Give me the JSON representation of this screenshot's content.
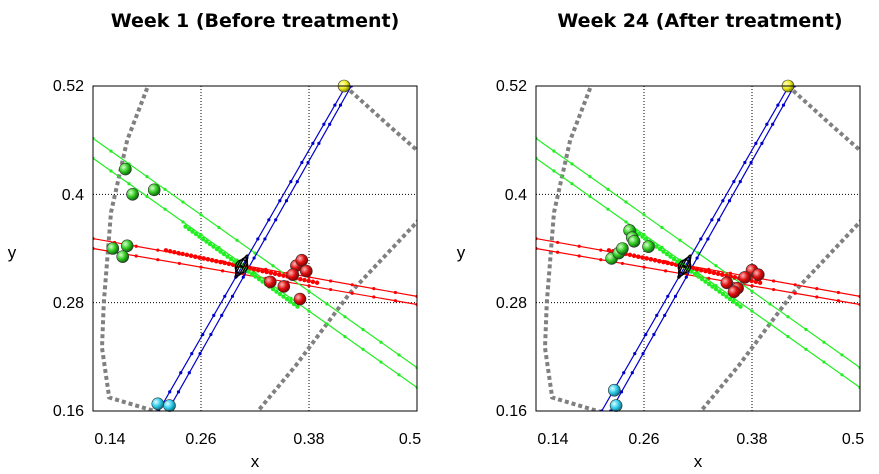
{
  "chart_data": [
    {
      "type": "scatter",
      "title": "Week 1 (Before treatment)",
      "xlabel": "x",
      "ylabel": "y",
      "xlim": [
        0.14,
        0.5
      ],
      "ylim": [
        0.16,
        0.52
      ],
      "xticks": [
        "0.14",
        "0.26",
        "0.38",
        "0.5"
      ],
      "yticks": [
        "0.16",
        "0.28",
        "0.4",
        "0.52"
      ],
      "grid": "dotted",
      "colors": {
        "red": "#ff0000",
        "green": "#22ee22",
        "blue": "#0000cc",
        "yellow": "#ffff33",
        "cyan": "#33ddee",
        "gray": "#808080"
      },
      "center": [
        0.305,
        0.32
      ],
      "series": [
        {
          "color": "red",
          "points": [
            [
              0.337,
              0.303
            ],
            [
              0.366,
              0.321
            ],
            [
              0.362,
              0.311
            ],
            [
              0.372,
              0.327
            ],
            [
              0.352,
              0.298
            ],
            [
              0.37,
              0.284
            ],
            [
              0.377,
              0.315
            ]
          ]
        },
        {
          "color": "green",
          "points": [
            [
              0.162,
              0.34
            ],
            [
              0.178,
              0.343
            ],
            [
              0.173,
              0.331
            ],
            [
              0.176,
              0.428
            ],
            [
              0.184,
              0.4
            ],
            [
              0.208,
              0.405
            ]
          ]
        },
        {
          "color": "yellow",
          "points": [
            [
              0.419,
              0.52
            ]
          ]
        },
        {
          "color": "cyan",
          "points": [
            [
              0.225,
              0.166
            ],
            [
              0.212,
              0.168
            ]
          ]
        }
      ],
      "lines": [
        {
          "color": "red",
          "from": [
            0.14,
            0.351
          ],
          "to": [
            0.5,
            0.287
          ]
        },
        {
          "color": "red",
          "from": [
            0.14,
            0.34
          ],
          "to": [
            0.5,
            0.278
          ]
        },
        {
          "color": "green",
          "from": [
            0.14,
            0.462
          ],
          "to": [
            0.5,
            0.208
          ]
        },
        {
          "color": "green",
          "from": [
            0.14,
            0.44
          ],
          "to": [
            0.5,
            0.186
          ]
        },
        {
          "color": "blue",
          "from": [
            0.213,
            0.16
          ],
          "to": [
            0.421,
            0.52
          ]
        },
        {
          "color": "blue",
          "from": [
            0.223,
            0.16
          ],
          "to": [
            0.427,
            0.52
          ]
        }
      ],
      "boundary": [
        [
          [
            0.203,
            0.525
          ],
          [
            0.178,
            0.46
          ],
          [
            0.16,
            0.38
          ],
          [
            0.152,
            0.28
          ],
          [
            0.15,
            0.23
          ],
          [
            0.158,
            0.175
          ],
          [
            0.215,
            0.158
          ]
        ],
        [
          [
            0.42,
            0.52
          ],
          [
            0.47,
            0.475
          ],
          [
            0.51,
            0.44
          ]
        ],
        [
          [
            0.315,
            0.15
          ],
          [
            0.365,
            0.21
          ],
          [
            0.425,
            0.29
          ],
          [
            0.51,
            0.38
          ]
        ]
      ]
    },
    {
      "type": "scatter",
      "title": "Week 24 (After treatment)",
      "xlabel": "x",
      "ylabel": "y",
      "xlim": [
        0.14,
        0.5
      ],
      "ylim": [
        0.16,
        0.52
      ],
      "xticks": [
        "0.14",
        "0.26",
        "0.38",
        "0.5"
      ],
      "yticks": [
        "0.16",
        "0.28",
        "0.4",
        "0.52"
      ],
      "grid": "dotted",
      "colors": {
        "red": "#ff0000",
        "green": "#22ee22",
        "blue": "#0000cc",
        "yellow": "#ffff33",
        "cyan": "#33ddee",
        "gray": "#808080"
      },
      "center": [
        0.305,
        0.32
      ],
      "series": [
        {
          "color": "red",
          "points": [
            [
              0.352,
              0.302
            ],
            [
              0.38,
              0.316
            ],
            [
              0.372,
              0.308
            ],
            [
              0.387,
              0.311
            ],
            [
              0.364,
              0.296
            ],
            [
              0.36,
              0.292
            ]
          ]
        },
        {
          "color": "green",
          "points": [
            [
              0.224,
              0.329
            ],
            [
              0.232,
              0.335
            ],
            [
              0.236,
              0.34
            ],
            [
              0.244,
              0.36
            ],
            [
              0.247,
              0.352
            ],
            [
              0.249,
              0.348
            ],
            [
              0.265,
              0.342
            ]
          ]
        },
        {
          "color": "yellow",
          "points": [
            [
              0.42,
              0.52
            ]
          ]
        },
        {
          "color": "cyan",
          "points": [
            [
              0.227,
              0.183
            ],
            [
              0.229,
              0.166
            ]
          ]
        }
      ],
      "lines": [
        {
          "color": "red",
          "from": [
            0.14,
            0.351
          ],
          "to": [
            0.5,
            0.287
          ]
        },
        {
          "color": "red",
          "from": [
            0.14,
            0.34
          ],
          "to": [
            0.5,
            0.278
          ]
        },
        {
          "color": "green",
          "from": [
            0.14,
            0.462
          ],
          "to": [
            0.5,
            0.208
          ]
        },
        {
          "color": "green",
          "from": [
            0.14,
            0.44
          ],
          "to": [
            0.5,
            0.186
          ]
        },
        {
          "color": "blue",
          "from": [
            0.213,
            0.16
          ],
          "to": [
            0.421,
            0.52
          ]
        },
        {
          "color": "blue",
          "from": [
            0.223,
            0.16
          ],
          "to": [
            0.427,
            0.52
          ]
        }
      ],
      "boundary": [
        [
          [
            0.203,
            0.525
          ],
          [
            0.178,
            0.46
          ],
          [
            0.16,
            0.38
          ],
          [
            0.152,
            0.28
          ],
          [
            0.15,
            0.23
          ],
          [
            0.158,
            0.175
          ],
          [
            0.215,
            0.158
          ]
        ],
        [
          [
            0.42,
            0.52
          ],
          [
            0.47,
            0.475
          ],
          [
            0.51,
            0.44
          ]
        ],
        [
          [
            0.315,
            0.15
          ],
          [
            0.365,
            0.21
          ],
          [
            0.425,
            0.29
          ],
          [
            0.51,
            0.38
          ]
        ]
      ]
    }
  ]
}
